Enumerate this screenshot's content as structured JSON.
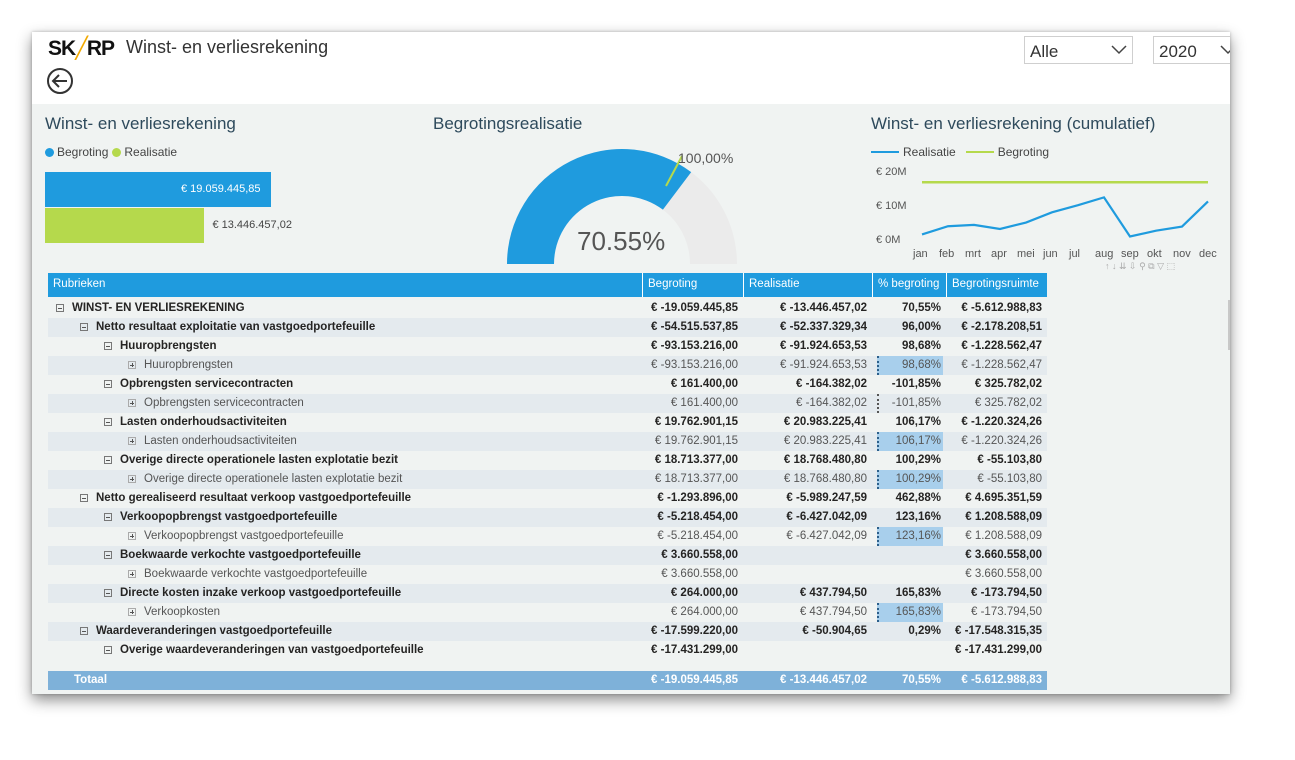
{
  "header": {
    "logo_left": "SK",
    "logo_accent": "╱",
    "logo_right": "RP",
    "title": "Winst- en verliesrekening",
    "back_icon": "back-arrow-icon"
  },
  "slicers": [
    {
      "value": "Alle"
    },
    {
      "value": "2020"
    }
  ],
  "bar_visual": {
    "title": "Winst- en verliesrekening",
    "legend": [
      "Begroting",
      "Realisatie"
    ],
    "colors": {
      "begroting": "#1f9bde",
      "realisatie": "#b5d94c"
    },
    "chart_data": {
      "type": "bar",
      "categories": [
        "Begroting",
        "Realisatie"
      ],
      "values": [
        19059445.85,
        13446457.02
      ],
      "labels": [
        "€ 19.059.445,85",
        "€ 13.446.457,02"
      ]
    }
  },
  "gauge_visual": {
    "title": "Begrotingsrealisatie",
    "value_label": "70.55%",
    "target_label": "100,00%",
    "value": 70.55,
    "target": 100,
    "colors": {
      "fill": "#1f9bde",
      "track": "#ebebeb",
      "target": "#b5d94c"
    }
  },
  "line_visual": {
    "title": "Winst- en verliesrekening (cumulatief)",
    "legend": [
      "Realisatie",
      "Begroting"
    ],
    "colors": {
      "realisatie": "#1f9bde",
      "begroting": "#b5d94c"
    },
    "y_ticks": [
      "€ 20M",
      "€ 10M",
      "€ 0M"
    ],
    "chart_data": {
      "type": "line",
      "x": [
        "jan",
        "feb",
        "mrt",
        "apr",
        "mei",
        "jun",
        "jul",
        "aug",
        "sep",
        "okt",
        "nov",
        "dec"
      ],
      "ylim": [
        0,
        20000000
      ],
      "series": [
        {
          "name": "Realisatie",
          "values": [
            3700000,
            6100000,
            6500000,
            5300000,
            7200000,
            10200000,
            12300000,
            14600000,
            3100000,
            4800000,
            6000000,
            13400000
          ]
        },
        {
          "name": "Begroting",
          "values": [
            19059445.85,
            19059445.85,
            19059445.85,
            19059445.85,
            19059445.85,
            19059445.85,
            19059445.85,
            19059445.85,
            19059445.85,
            19059445.85,
            19059445.85,
            19059445.85
          ]
        }
      ]
    }
  },
  "table": {
    "columns": [
      "Rubrieken",
      "Begroting",
      "Realisatie",
      "% begroting",
      "Begrotingsruimte"
    ],
    "rows": [
      {
        "level": 0,
        "toggle": "minus",
        "bold": true,
        "label": "WINST- EN VERLIESREKENING",
        "begroting": "€ -19.059.445,85",
        "realisatie": "€ -13.446.457,02",
        "pct": "70,55%",
        "ruimte": "€ -5.612.988,83"
      },
      {
        "level": 1,
        "toggle": "minus",
        "bold": true,
        "label": "Netto resultaat exploitatie van vastgoedportefeuille",
        "begroting": "€ -54.515.537,85",
        "realisatie": "€ -52.337.329,34",
        "pct": "96,00%",
        "ruimte": "€ -2.178.208,51"
      },
      {
        "level": 2,
        "toggle": "minus",
        "bold": true,
        "label": "Huuropbrengsten",
        "begroting": "€ -93.153.216,00",
        "realisatie": "€ -91.924.653,53",
        "pct": "98,68%",
        "ruimte": "€ -1.228.562,47"
      },
      {
        "level": 3,
        "toggle": "plus",
        "bold": false,
        "hl": true,
        "label": "Huuropbrengsten",
        "begroting": "€ -93.153.216,00",
        "realisatie": "€ -91.924.653,53",
        "pct": "98,68%",
        "ruimte": "€ -1.228.562,47"
      },
      {
        "level": 2,
        "toggle": "minus",
        "bold": true,
        "label": "Opbrengsten servicecontracten",
        "begroting": "€ 161.400,00",
        "realisatie": "€ -164.382,02",
        "pct": "-101,85%",
        "ruimte": "€ 325.782,02"
      },
      {
        "level": 3,
        "toggle": "plus",
        "bold": false,
        "dotted": true,
        "label": "Opbrengsten servicecontracten",
        "begroting": "€ 161.400,00",
        "realisatie": "€ -164.382,02",
        "pct": "-101,85%",
        "ruimte": "€ 325.782,02"
      },
      {
        "level": 2,
        "toggle": "minus",
        "bold": true,
        "label": "Lasten onderhoudsactiviteiten",
        "begroting": "€ 19.762.901,15",
        "realisatie": "€ 20.983.225,41",
        "pct": "106,17%",
        "ruimte": "€ -1.220.324,26"
      },
      {
        "level": 3,
        "toggle": "plus",
        "bold": false,
        "hl": true,
        "label": "Lasten onderhoudsactiviteiten",
        "begroting": "€ 19.762.901,15",
        "realisatie": "€ 20.983.225,41",
        "pct": "106,17%",
        "ruimte": "€ -1.220.324,26"
      },
      {
        "level": 2,
        "toggle": "minus",
        "bold": true,
        "label": "Overige directe operationele lasten explotatie bezit",
        "begroting": "€ 18.713.377,00",
        "realisatie": "€ 18.768.480,80",
        "pct": "100,29%",
        "ruimte": "€ -55.103,80"
      },
      {
        "level": 3,
        "toggle": "plus",
        "bold": false,
        "hl": true,
        "label": "Overige directe operationele lasten explotatie bezit",
        "begroting": "€ 18.713.377,00",
        "realisatie": "€ 18.768.480,80",
        "pct": "100,29%",
        "ruimte": "€ -55.103,80"
      },
      {
        "level": 1,
        "toggle": "minus",
        "bold": true,
        "label": "Netto gerealiseerd resultaat verkoop vastgoedportefeuille",
        "begroting": "€ -1.293.896,00",
        "realisatie": "€ -5.989.247,59",
        "pct": "462,88%",
        "ruimte": "€ 4.695.351,59"
      },
      {
        "level": 2,
        "toggle": "minus",
        "bold": true,
        "label": "Verkoopopbrengst vastgoedportefeuille",
        "begroting": "€ -5.218.454,00",
        "realisatie": "€ -6.427.042,09",
        "pct": "123,16%",
        "ruimte": "€ 1.208.588,09"
      },
      {
        "level": 3,
        "toggle": "plus",
        "bold": false,
        "hl": true,
        "label": "Verkoopopbrengst vastgoedportefeuille",
        "begroting": "€ -5.218.454,00",
        "realisatie": "€ -6.427.042,09",
        "pct": "123,16%",
        "ruimte": "€ 1.208.588,09"
      },
      {
        "level": 2,
        "toggle": "minus",
        "bold": true,
        "label": "Boekwaarde verkochte vastgoedportefeuille",
        "begroting": "€ 3.660.558,00",
        "realisatie": "",
        "pct": "",
        "ruimte": "€ 3.660.558,00"
      },
      {
        "level": 3,
        "toggle": "plus",
        "bold": false,
        "label": "Boekwaarde verkochte vastgoedportefeuille",
        "begroting": "€ 3.660.558,00",
        "realisatie": "",
        "pct": "",
        "ruimte": "€ 3.660.558,00"
      },
      {
        "level": 2,
        "toggle": "minus",
        "bold": true,
        "label": "Directe kosten inzake verkoop vastgoedportefeuille",
        "begroting": "€ 264.000,00",
        "realisatie": "€ 437.794,50",
        "pct": "165,83%",
        "ruimte": "€ -173.794,50"
      },
      {
        "level": 3,
        "toggle": "plus",
        "bold": false,
        "hl": true,
        "label": "Verkoopkosten",
        "begroting": "€ 264.000,00",
        "realisatie": "€ 437.794,50",
        "pct": "165,83%",
        "ruimte": "€ -173.794,50"
      },
      {
        "level": 1,
        "toggle": "minus",
        "bold": true,
        "label": "Waardeveranderingen vastgoedportefeuille",
        "begroting": "€ -17.599.220,00",
        "realisatie": "€ -50.904,65",
        "pct": "0,29%",
        "ruimte": "€ -17.548.315,35"
      },
      {
        "level": 2,
        "toggle": "minus",
        "bold": true,
        "label": "Overige waardeveranderingen van vastgoedportefeuille",
        "begroting": "€ -17.431.299,00",
        "realisatie": "",
        "pct": "",
        "ruimte": "€ -17.431.299,00"
      }
    ],
    "total": {
      "label": "Totaal",
      "begroting": "€ -19.059.445,85",
      "realisatie": "€ -13.446.457,02",
      "pct": "70,55%",
      "ruimte": "€ -5.612.988,83"
    }
  }
}
